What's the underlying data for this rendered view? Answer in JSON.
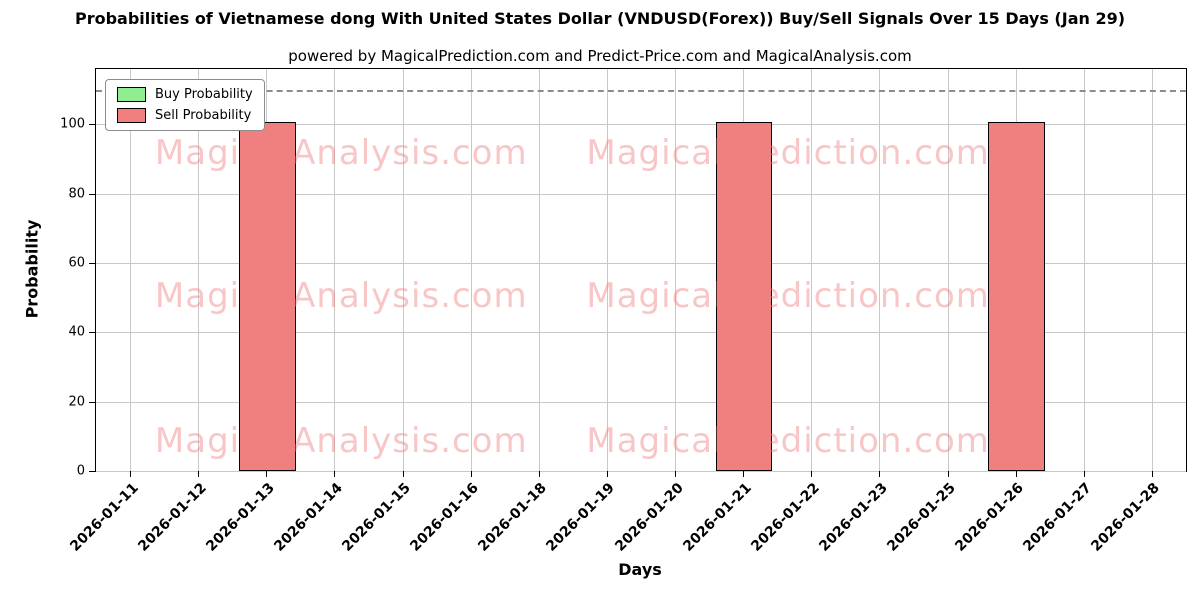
{
  "chart_data": {
    "type": "bar",
    "title": "Probabilities of Vietnamese dong With United States Dollar (VNDUSD(Forex)) Buy/Sell Signals Over 15 Days (Jan 29)",
    "subtitle": "powered by MagicalPrediction.com and Predict-Price.com and MagicalAnalysis.com",
    "xlabel": "Days",
    "ylabel": "Probability",
    "categories": [
      "2026-01-11",
      "2026-01-12",
      "2026-01-13",
      "2026-01-14",
      "2026-01-15",
      "2026-01-16",
      "2026-01-18",
      "2026-01-19",
      "2026-01-20",
      "2026-01-21",
      "2026-01-22",
      "2026-01-23",
      "2026-01-25",
      "2026-01-26",
      "2026-01-27",
      "2026-01-28"
    ],
    "series": [
      {
        "name": "Buy Probability",
        "color": "#90ee90",
        "values": [
          0,
          0,
          0,
          0,
          0,
          0,
          0,
          0,
          0,
          0,
          0,
          0,
          0,
          0,
          0,
          0
        ]
      },
      {
        "name": "Sell Probability",
        "color": "#f08080",
        "values": [
          0,
          0,
          100,
          0,
          0,
          0,
          0,
          0,
          0,
          100,
          0,
          0,
          0,
          100,
          0,
          0
        ]
      }
    ],
    "ylim": [
      0,
      116
    ],
    "yticks": [
      0,
      20,
      40,
      60,
      80,
      100
    ],
    "dashed_line_y": 110,
    "grid": true,
    "legend_position": "upper left",
    "bar_edge_color": "#000000",
    "watermarks": {
      "left_text": "MagicalAnalysis.com",
      "right_text": "MagicalPrediction.com",
      "rows": 3,
      "color": "rgba(240,128,128,0.45)"
    }
  }
}
